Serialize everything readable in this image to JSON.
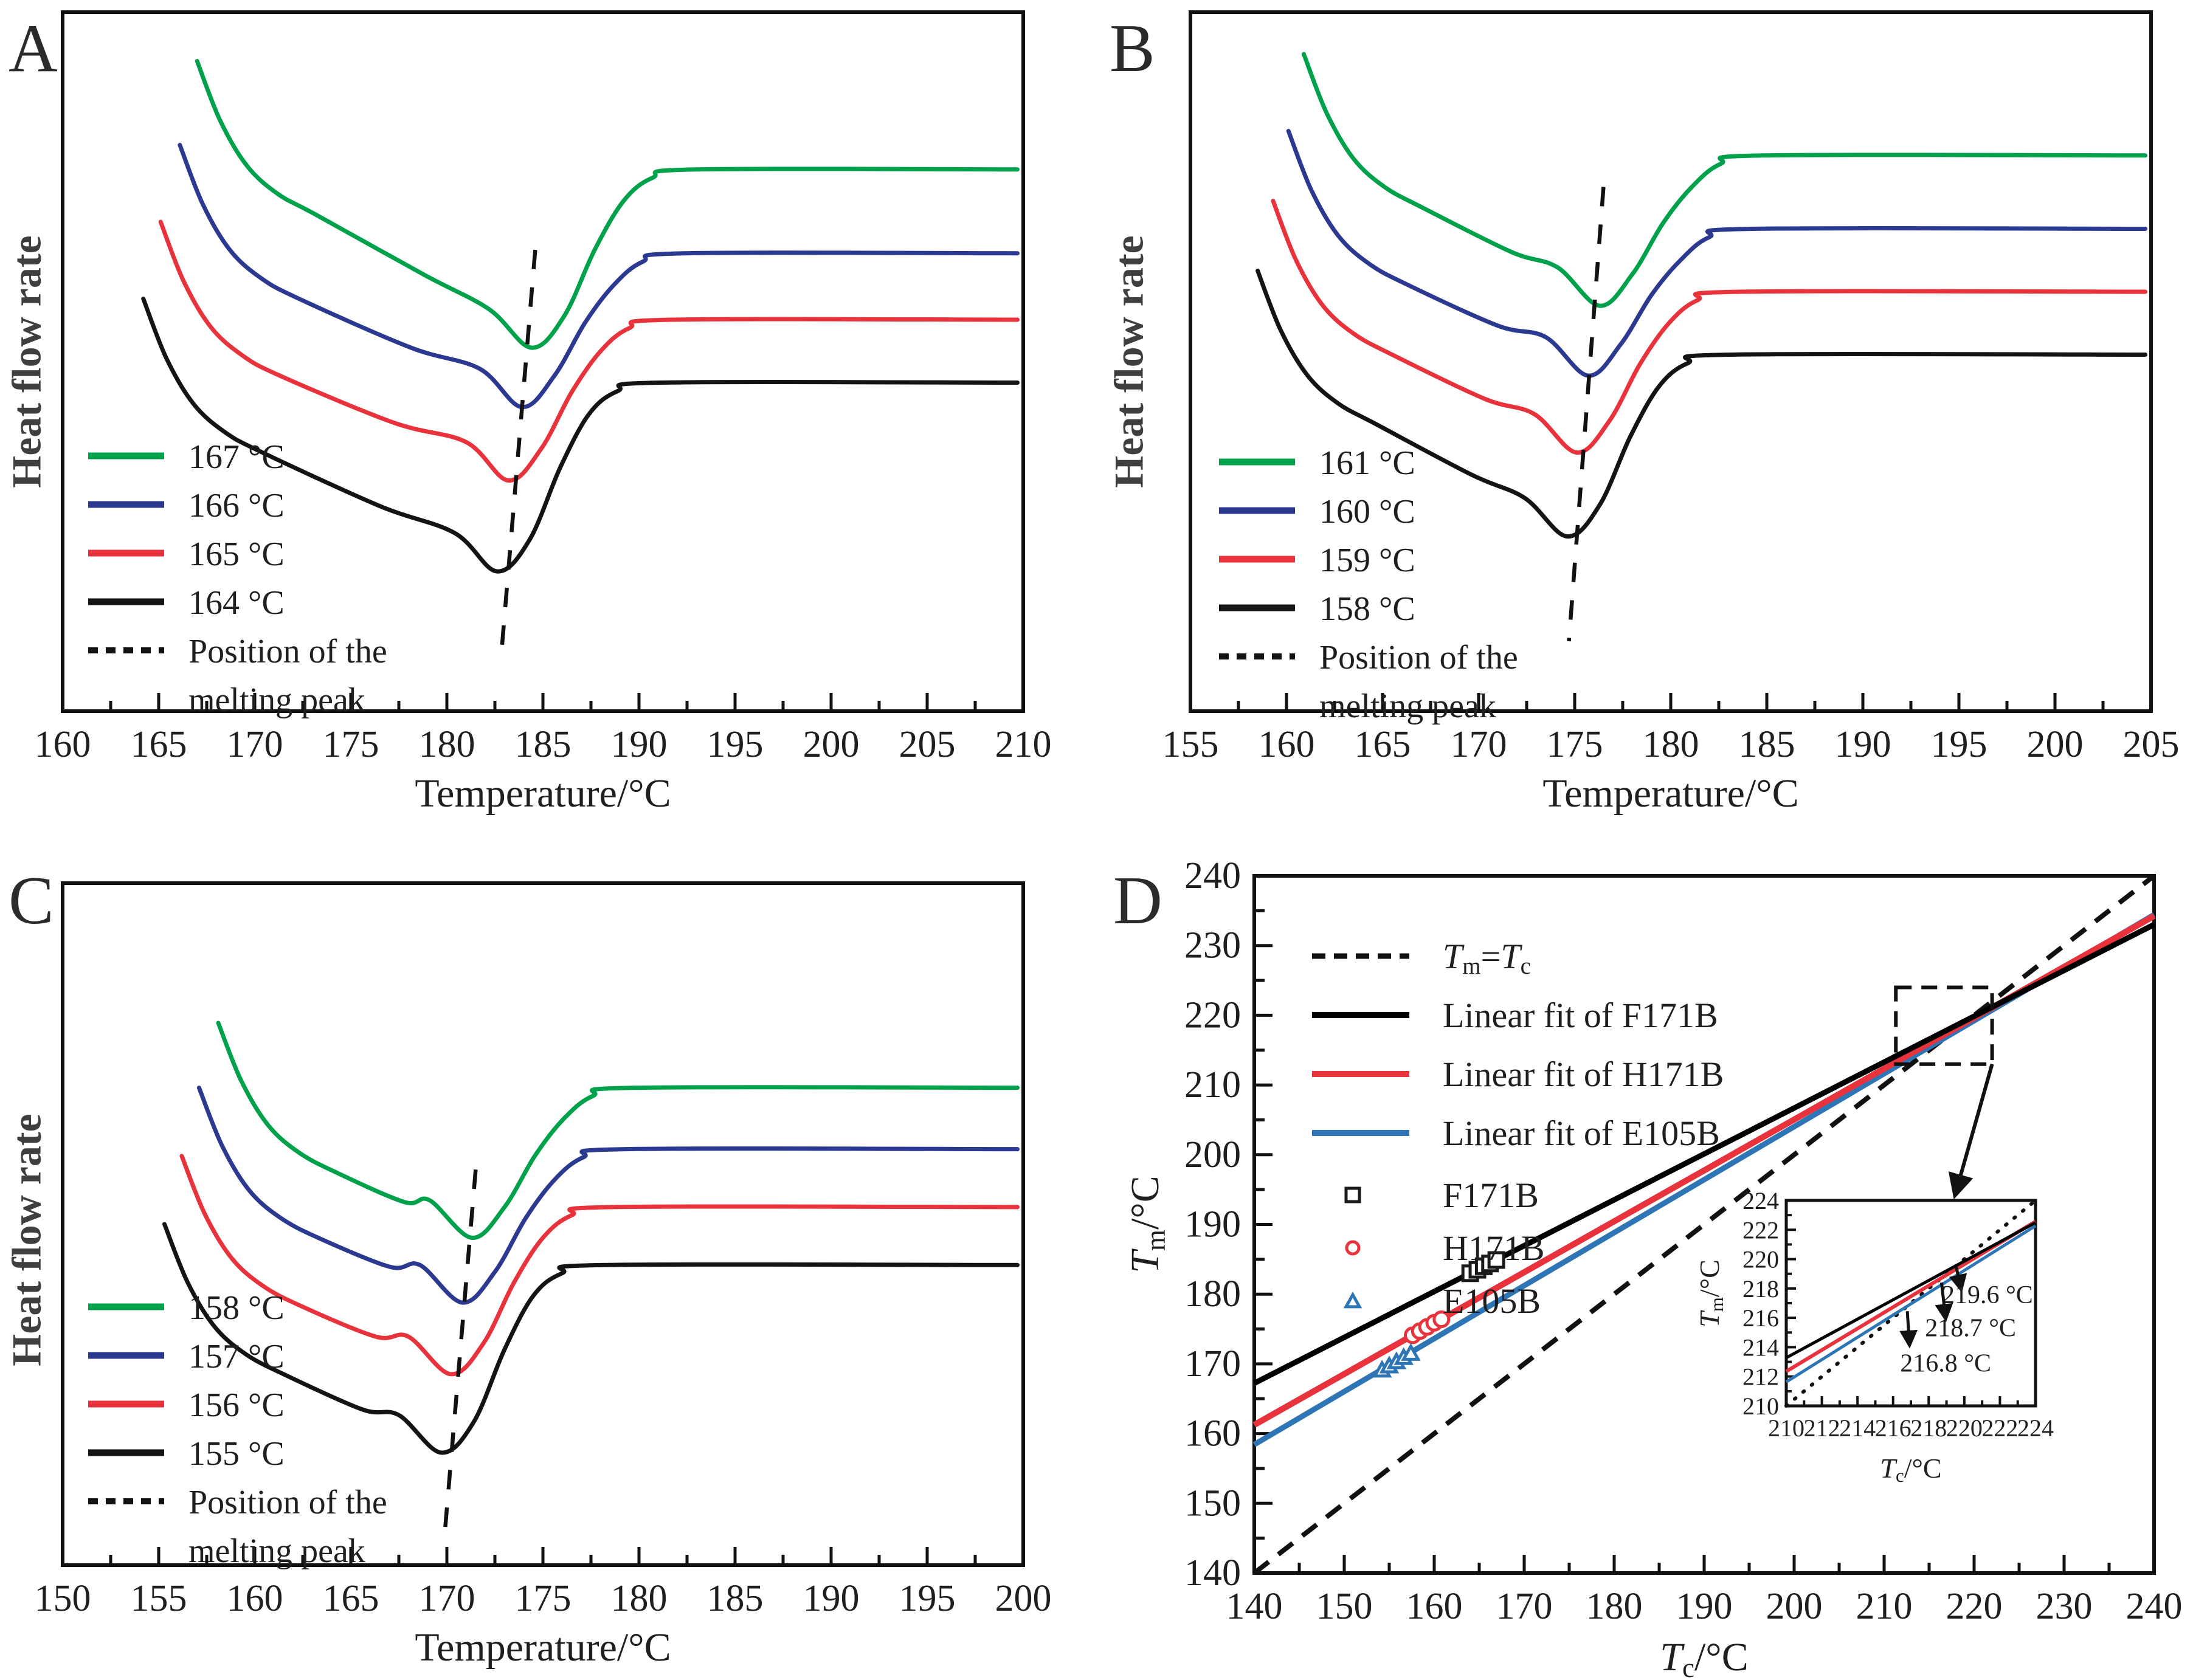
{
  "chart_data": [
    {
      "id": "A",
      "panel_label": "A",
      "type": "line",
      "x_axis": {
        "title": "Temperature/°C",
        "min": 160,
        "max": 210,
        "major_step": 5,
        "minor_step": 2.5
      },
      "y_axis": {
        "title": "Heat flow rate"
      },
      "series": [
        {
          "name": "167 °C",
          "color": "#00A14B",
          "start": [
            167.0,
            0.07
          ],
          "peak": [
            184.4,
            0.48
          ],
          "baseline": 0.225,
          "peak_temperature": 184.4
        },
        {
          "name": "166 °C",
          "color": "#2B3990",
          "start": [
            166.1,
            0.19
          ],
          "peak": [
            183.9,
            0.565
          ],
          "baseline": 0.345,
          "peak_temperature": 183.9
        },
        {
          "name": "165 °C",
          "color": "#E8323C",
          "start": [
            165.1,
            0.3
          ],
          "peak": [
            183.2,
            0.67
          ],
          "baseline": 0.44,
          "peak_temperature": 183.2
        },
        {
          "name": "164 °C",
          "color": "#141414",
          "start": [
            164.2,
            0.41
          ],
          "peak": [
            182.6,
            0.8
          ],
          "baseline": 0.53,
          "peak_temperature": 182.6
        }
      ],
      "melting_peak_guide": {
        "label_lines": [
          "Position of the",
          "melting peak"
        ],
        "top": [
          184.6,
          0.34
        ],
        "bottom": [
          182.8,
          0.93
        ]
      }
    },
    {
      "id": "B",
      "panel_label": "B",
      "type": "line",
      "x_axis": {
        "title": "Temperature/°C",
        "min": 155,
        "max": 205,
        "major_step": 5,
        "minor_step": 2.5
      },
      "y_axis": {
        "title": "Heat flow rate"
      },
      "series": [
        {
          "name": "161 °C",
          "color": "#00A14B",
          "start": [
            160.9,
            0.06
          ],
          "peak": [
            176.3,
            0.42
          ],
          "baseline": 0.205,
          "peak_temperature": 176.3
        },
        {
          "name": "160 °C",
          "color": "#2B3990",
          "start": [
            160.1,
            0.17
          ],
          "peak": [
            175.7,
            0.52
          ],
          "baseline": 0.31,
          "peak_temperature": 175.7
        },
        {
          "name": "159 °C",
          "color": "#E8323C",
          "start": [
            159.3,
            0.27
          ],
          "peak": [
            175.1,
            0.63
          ],
          "baseline": 0.4,
          "peak_temperature": 175.1
        },
        {
          "name": "158 °C",
          "color": "#141414",
          "start": [
            158.5,
            0.37
          ],
          "peak": [
            174.6,
            0.75
          ],
          "baseline": 0.49,
          "peak_temperature": 174.6
        }
      ],
      "melting_peak_guide": {
        "label_lines": [
          "Position of the",
          "melting peak"
        ],
        "top": [
          176.5,
          0.25
        ],
        "bottom": [
          174.7,
          0.9
        ]
      }
    },
    {
      "id": "C",
      "panel_label": "C",
      "type": "line",
      "x_axis": {
        "title": "Temperature/°C",
        "min": 150,
        "max": 200,
        "major_step": 5,
        "minor_step": 2.5
      },
      "y_axis": {
        "title": "Heat flow rate"
      },
      "series": [
        {
          "name": "158 °C",
          "color": "#00A14B",
          "start": [
            158.1,
            0.205
          ],
          "peak": [
            171.3,
            0.52
          ],
          "baseline": 0.3,
          "peak_temperature": 171.3
        },
        {
          "name": "157 °C",
          "color": "#2B3990",
          "start": [
            157.1,
            0.3
          ],
          "peak": [
            170.8,
            0.615
          ],
          "baseline": 0.39,
          "peak_temperature": 170.8
        },
        {
          "name": "156 °C",
          "color": "#E8323C",
          "start": [
            156.2,
            0.4
          ],
          "peak": [
            170.2,
            0.72
          ],
          "baseline": 0.475,
          "peak_temperature": 170.2
        },
        {
          "name": "155 °C",
          "color": "#141414",
          "start": [
            155.3,
            0.5
          ],
          "peak": [
            169.7,
            0.835
          ],
          "baseline": 0.56,
          "peak_temperature": 169.7
        }
      ],
      "melting_peak_guide": {
        "label_lines": [
          "Position of the",
          "melting peak"
        ],
        "top": [
          171.5,
          0.42
        ],
        "bottom": [
          169.9,
          0.95
        ]
      }
    },
    {
      "id": "D",
      "panel_label": "D",
      "type": "scatter",
      "x_axis": {
        "min": 140,
        "max": 240,
        "major_step": 10,
        "minor_step": 5,
        "title_segments": [
          {
            "t": "T",
            "italic": true
          },
          {
            "t": "c",
            "sub": true
          },
          {
            "t": "/°C"
          }
        ]
      },
      "y_axis": {
        "min": 140,
        "max": 240,
        "major_step": 10,
        "minor_step": 5,
        "title_segments": [
          {
            "t": "T",
            "italic": true
          },
          {
            "t": "m",
            "sub": true
          },
          {
            "t": "/°C"
          }
        ]
      },
      "identity_line": {
        "style": "dashed",
        "color": "#111111",
        "label_segments": [
          {
            "t": "T",
            "italic": true
          },
          {
            "t": "m",
            "sub": true
          },
          {
            "t": "="
          },
          {
            "t": "T",
            "italic": true
          },
          {
            "t": "c",
            "sub": true
          }
        ]
      },
      "fits": [
        {
          "name": "Linear fit of F171B",
          "color": "#000000",
          "slope": 0.658,
          "intercept": 75.1,
          "equilibrium_Tm": 219.6
        },
        {
          "name": "Linear fit of H171B",
          "color": "#E8323C",
          "slope": 0.73,
          "intercept": 59.05,
          "equilibrium_Tm": 218.7
        },
        {
          "name": "Linear fit of E105B",
          "color": "#2E75B6",
          "slope": 0.76,
          "intercept": 52.03,
          "equilibrium_Tm": 216.8
        }
      ],
      "scatter": [
        {
          "name": "F171B",
          "marker": "square",
          "color": "#1a1a1a",
          "points": [
            [
              164.0,
              183.0
            ],
            [
              164.8,
              183.5
            ],
            [
              165.5,
              184.0
            ],
            [
              166.2,
              184.4
            ],
            [
              166.9,
              184.9
            ]
          ]
        },
        {
          "name": "H171B",
          "marker": "circle",
          "color": "#E8323C",
          "points": [
            [
              157.6,
              174.1
            ],
            [
              158.4,
              174.7
            ],
            [
              159.2,
              175.3
            ],
            [
              160.0,
              175.9
            ],
            [
              160.8,
              176.4
            ]
          ]
        },
        {
          "name": "E105B",
          "marker": "triangle",
          "color": "#2E75B6",
          "points": [
            [
              154.2,
              169.2
            ],
            [
              155.0,
              169.8
            ],
            [
              155.8,
              170.4
            ],
            [
              156.6,
              171.0
            ],
            [
              157.4,
              171.6
            ]
          ]
        }
      ],
      "zoom_rect": {
        "x1": 211.3,
        "y1": 213.0,
        "x2": 222.0,
        "y2": 224.0
      },
      "arrow": {
        "from": [
          222.0,
          213.0
        ],
        "to": [
          217.9,
          194.3
        ]
      },
      "inset": {
        "x_axis": {
          "min": 210,
          "max": 224,
          "major_step": 2,
          "minor_step": 1,
          "title_segments": [
            {
              "t": "T",
              "italic": true
            },
            {
              "t": "c",
              "sub": true
            },
            {
              "t": "/°C"
            }
          ]
        },
        "y_axis": {
          "min": 210,
          "max": 224,
          "major_step": 2,
          "minor_step": 1,
          "title_segments": [
            {
              "t": "T",
              "italic": true
            },
            {
              "t": "m",
              "sub": true
            },
            {
              "t": "/°C"
            }
          ]
        },
        "annotations": [
          {
            "text": "219.6 °C",
            "arrow_from": [
              219.55,
              219.45
            ],
            "arrow_to": [
              219.82,
              217.95
            ],
            "text_at": [
              221.3,
              217.0
            ]
          },
          {
            "text": "218.7 °C",
            "arrow_from": [
              218.72,
              218.4
            ],
            "arrow_to": [
              218.95,
              215.95
            ],
            "text_at": [
              220.35,
              214.75
            ]
          },
          {
            "text": "216.8 °C",
            "arrow_from": [
              216.8,
              216.45
            ],
            "arrow_to": [
              216.92,
              214.15
            ],
            "text_at": [
              218.95,
              212.35
            ]
          }
        ]
      }
    }
  ]
}
